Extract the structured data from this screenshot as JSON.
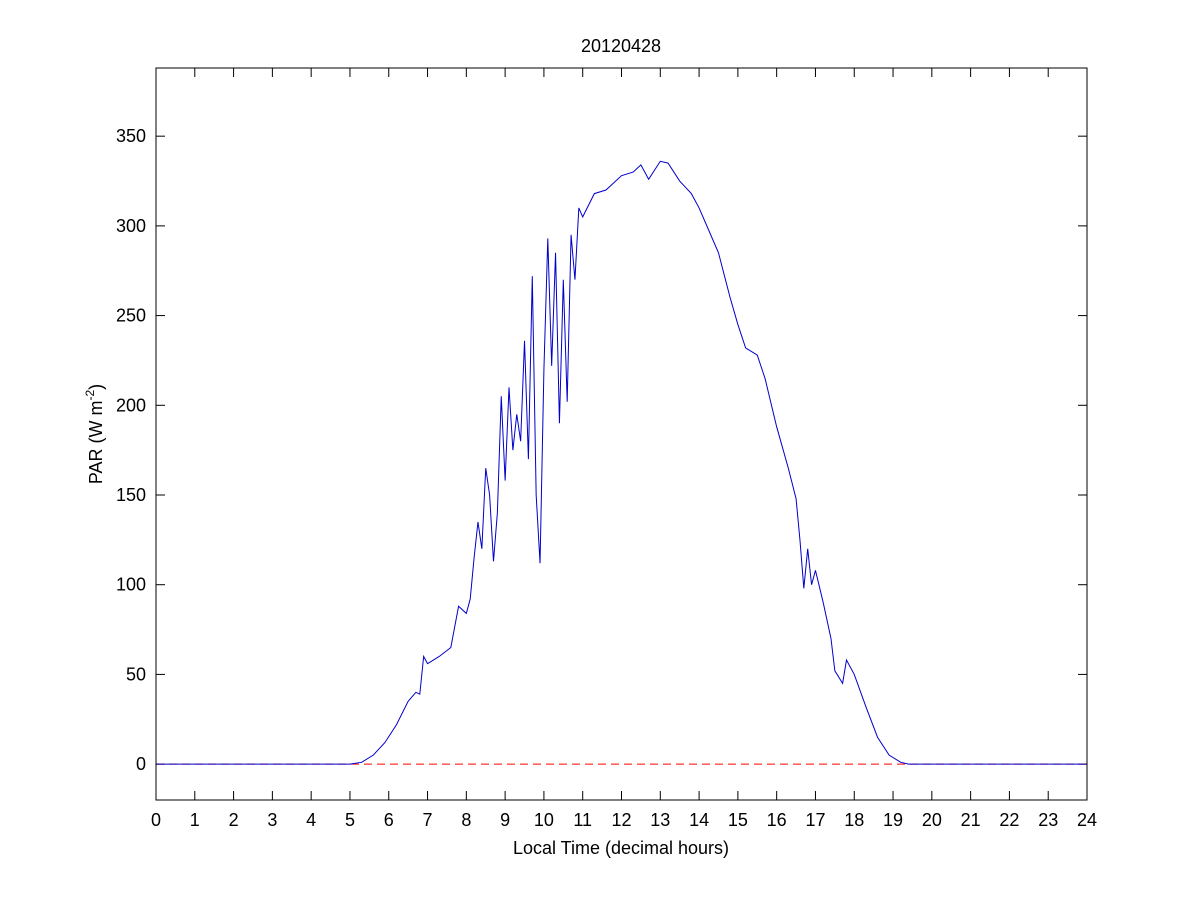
{
  "chart_data": {
    "type": "line",
    "title": "20120428",
    "xlabel": "Local Time (decimal hours)",
    "ylabel": [
      "PAR (W m",
      "-2",
      ")"
    ],
    "x": [
      0,
      5,
      5.3,
      5.6,
      5.9,
      6.2,
      6.5,
      6.7,
      6.8,
      6.9,
      7.0,
      7.3,
      7.6,
      7.8,
      8.0,
      8.1,
      8.2,
      8.3,
      8.4,
      8.5,
      8.6,
      8.7,
      8.8,
      8.9,
      9.0,
      9.1,
      9.2,
      9.3,
      9.4,
      9.5,
      9.6,
      9.7,
      9.8,
      9.9,
      10.0,
      10.1,
      10.2,
      10.3,
      10.4,
      10.5,
      10.6,
      10.7,
      10.8,
      10.9,
      11.0,
      11.3,
      11.6,
      12.0,
      12.3,
      12.5,
      12.7,
      13.0,
      13.2,
      13.5,
      13.8,
      14.0,
      14.2,
      14.5,
      14.8,
      15.0,
      15.2,
      15.5,
      15.7,
      16.0,
      16.3,
      16.5,
      16.6,
      16.7,
      16.8,
      16.9,
      17.0,
      17.2,
      17.4,
      17.5,
      17.7,
      17.8,
      18.0,
      18.3,
      18.6,
      18.9,
      19.2,
      19.4,
      24
    ],
    "series": [
      {
        "color": "#0000cc",
        "values": [
          0,
          0,
          1,
          5,
          12,
          22,
          35,
          40,
          39,
          60,
          56,
          60,
          65,
          88,
          84,
          92,
          115,
          135,
          120,
          165,
          150,
          113,
          140,
          205,
          158,
          210,
          175,
          195,
          180,
          236,
          170,
          272,
          150,
          112,
          220,
          293,
          222,
          285,
          190,
          270,
          202,
          295,
          270,
          310,
          305,
          318,
          320,
          328,
          330,
          334,
          326,
          336,
          335,
          325,
          318,
          310,
          300,
          285,
          260,
          245,
          232,
          228,
          215,
          188,
          165,
          148,
          125,
          98,
          120,
          100,
          108,
          90,
          70,
          52,
          45,
          58,
          50,
          32,
          15,
          5,
          1,
          0,
          0
        ]
      }
    ],
    "hline": {
      "value": 0,
      "color": "#ff0000"
    },
    "xlim": [
      0,
      24
    ],
    "xticks": [
      0,
      1,
      2,
      3,
      4,
      5,
      6,
      7,
      8,
      9,
      10,
      11,
      12,
      13,
      14,
      15,
      16,
      17,
      18,
      19,
      20,
      21,
      22,
      23,
      24
    ],
    "ylim": [
      -20,
      388
    ],
    "yticks": [
      0,
      50,
      100,
      150,
      200,
      250,
      300,
      350
    ]
  }
}
